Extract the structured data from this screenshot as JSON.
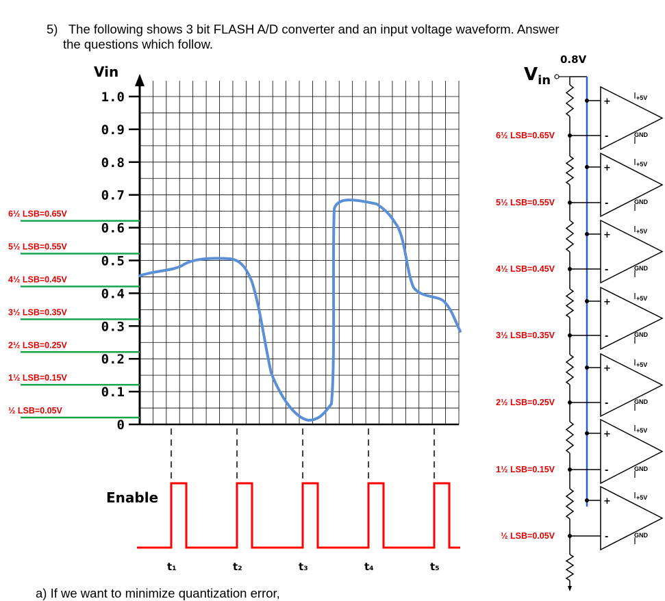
{
  "question": {
    "number": "5)",
    "line1": "The following shows 3 bit FLASH A/D converter and an input voltage waveform.  Answer",
    "line2": "the questions which follow.",
    "part_a": "a)  If we want to minimize quantization error,"
  },
  "waveform_chart": {
    "y_axis_label": "Vin",
    "y_ticks": [
      "1.0",
      "0.9",
      "0.8",
      "0.7",
      "0.6",
      "0.5",
      "0.4",
      "0.3",
      "0.2",
      "0.1",
      "0"
    ],
    "threshold_lines": [
      {
        "label": "6½ LSB=0.65V",
        "value": 0.65
      },
      {
        "label": "5½ LSB=0.55V",
        "value": 0.55
      },
      {
        "label": "4½ LSB=0.45V",
        "value": 0.45
      },
      {
        "label": "3½ LSB=0.35V",
        "value": 0.35
      },
      {
        "label": "2½ LSB=0.25V",
        "value": 0.25
      },
      {
        "label": "1½ LSB=0.15V",
        "value": 0.15
      },
      {
        "label": "½ LSB=0.05V",
        "value": 0.05
      }
    ],
    "threshold_color": "#16a34a",
    "threshold_label_color": "#e00000",
    "waveform_color": "#5b8fd6",
    "enable_label": "Enable",
    "enable_color": "#ff0000",
    "sample_times": [
      "t₁",
      "t₂",
      "t₃",
      "t₄",
      "t₅"
    ]
  },
  "converter": {
    "vin_label": "V",
    "vin_sub": "in",
    "reference_label": "0.8V",
    "ladder_labels": [
      "6½ LSB=0.65V",
      "5½ LSB=0.55V",
      "4½ LSB=0.45V",
      "3½ LSB=0.35V",
      "2½ LSB=0.25V",
      "1½ LSB=0.15V",
      "½ LSB=0.05V"
    ],
    "supply_label": "+5V",
    "ground_label": "GND",
    "plus_sign": "+",
    "minus_sign": "-",
    "bus_color": "#2a5bd7",
    "ladder_label_color": "#e00000"
  }
}
